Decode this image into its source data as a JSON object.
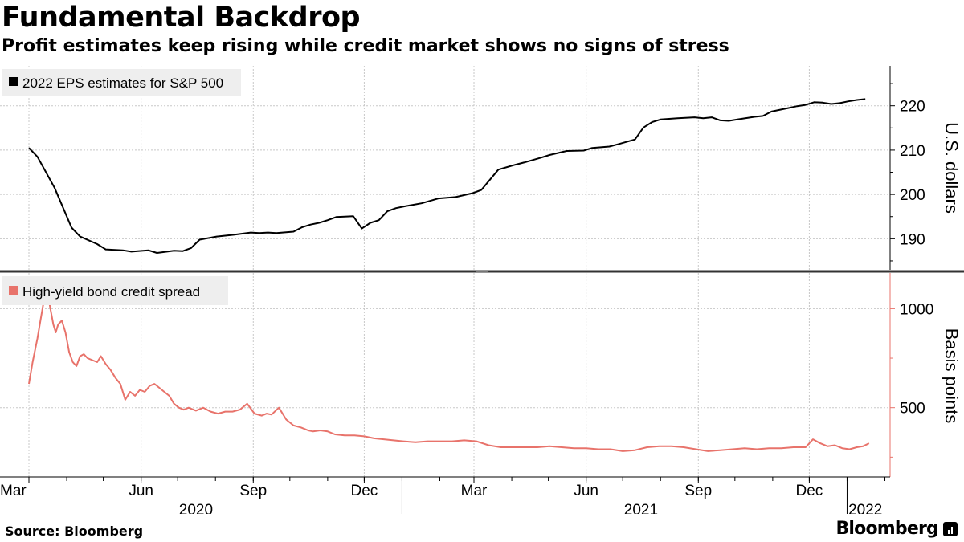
{
  "header": {
    "title": "Fundamental Backdrop",
    "subtitle": "Profit estimates keep rising while credit market shows no signs of stress"
  },
  "footer": {
    "source": "Source: Bloomberg",
    "brand": "Bloomberg"
  },
  "colors": {
    "eps_line": "#000000",
    "spread_line": "#e8736b",
    "grid": "#c8c8c8"
  },
  "chart_data": [
    {
      "type": "line",
      "panel": "top",
      "legend": "2022 EPS estimates for S&P 500",
      "legend_position": "top-left",
      "ylabel": "U.S. dollars",
      "y_ticks": [
        "190",
        "200",
        "210",
        "220"
      ],
      "ylim": [
        183,
        229
      ],
      "y_axis_side": "right",
      "grid": true,
      "series": [
        {
          "name": "2022 EPS estimates for S&P 500",
          "x": [
            "2020-03-01",
            "2020-03-08",
            "2020-03-22",
            "2020-04-05",
            "2020-04-12",
            "2020-04-26",
            "2020-05-03",
            "2020-05-17",
            "2020-05-24",
            "2020-06-07",
            "2020-06-14",
            "2020-06-28",
            "2020-07-05",
            "2020-07-12",
            "2020-07-19",
            "2020-08-02",
            "2020-08-16",
            "2020-08-30",
            "2020-09-06",
            "2020-09-13",
            "2020-09-20",
            "2020-10-04",
            "2020-10-11",
            "2020-10-18",
            "2020-10-25",
            "2020-11-01",
            "2020-11-08",
            "2020-11-22",
            "2020-11-29",
            "2020-12-06",
            "2020-12-13",
            "2020-12-20",
            "2020-12-27",
            "2021-01-03",
            "2021-01-17",
            "2021-01-31",
            "2021-02-14",
            "2021-02-28",
            "2021-03-07",
            "2021-03-21",
            "2021-04-04",
            "2021-04-11",
            "2021-04-25",
            "2021-05-02",
            "2021-05-16",
            "2021-05-30",
            "2021-06-06",
            "2021-06-20",
            "2021-06-27",
            "2021-07-11",
            "2021-07-18",
            "2021-07-25",
            "2021-08-01",
            "2021-08-15",
            "2021-08-29",
            "2021-09-05",
            "2021-09-12",
            "2021-09-19",
            "2021-09-26",
            "2021-10-03",
            "2021-10-17",
            "2021-10-24",
            "2021-10-31",
            "2021-11-14",
            "2021-11-21",
            "2021-11-28",
            "2021-12-05",
            "2021-12-12",
            "2021-12-19",
            "2021-12-26",
            "2022-01-02",
            "2022-01-09",
            "2022-01-16"
          ],
          "values": [
            210.5,
            208.5,
            201.5,
            192.5,
            190.5,
            188.8,
            187.6,
            187.4,
            187.1,
            187.4,
            186.8,
            187.3,
            187.2,
            187.9,
            189.8,
            190.5,
            190.9,
            191.4,
            191.3,
            191.4,
            191.3,
            191.6,
            192.6,
            193.2,
            193.6,
            194.2,
            194.9,
            195.1,
            192.3,
            193.6,
            194.2,
            196.2,
            196.9,
            197.3,
            198.0,
            199.1,
            199.4,
            200.3,
            201.0,
            205.6,
            206.7,
            207.2,
            208.3,
            208.9,
            209.8,
            209.9,
            210.5,
            210.8,
            211.3,
            212.4,
            215.1,
            216.3,
            216.9,
            217.2,
            217.4,
            217.2,
            217.4,
            216.7,
            216.6,
            216.9,
            217.5,
            217.7,
            218.7,
            219.5,
            219.9,
            220.2,
            220.8,
            220.7,
            220.4,
            220.6,
            221.0,
            221.3,
            221.5
          ]
        }
      ]
    },
    {
      "type": "line",
      "panel": "bottom",
      "legend": "High-yield bond credit spread",
      "legend_position": "top-left",
      "ylabel": "Basis points",
      "y_ticks": [
        "500",
        "1000"
      ],
      "ylim": [
        150,
        1180
      ],
      "y_axis_side": "right",
      "grid": true,
      "series": [
        {
          "name": "High-yield bond credit spread",
          "x": [
            "2020-03-01",
            "2020-03-04",
            "2020-03-08",
            "2020-03-11",
            "2020-03-15",
            "2020-03-18",
            "2020-03-21",
            "2020-03-23",
            "2020-03-25",
            "2020-03-28",
            "2020-03-31",
            "2020-04-03",
            "2020-04-06",
            "2020-04-09",
            "2020-04-12",
            "2020-04-15",
            "2020-04-18",
            "2020-04-22",
            "2020-04-26",
            "2020-04-29",
            "2020-05-03",
            "2020-05-07",
            "2020-05-11",
            "2020-05-15",
            "2020-05-19",
            "2020-05-23",
            "2020-05-27",
            "2020-05-31",
            "2020-06-04",
            "2020-06-08",
            "2020-06-12",
            "2020-06-16",
            "2020-06-20",
            "2020-06-24",
            "2020-06-28",
            "2020-07-02",
            "2020-07-06",
            "2020-07-10",
            "2020-07-16",
            "2020-07-22",
            "2020-07-28",
            "2020-08-03",
            "2020-08-09",
            "2020-08-15",
            "2020-08-21",
            "2020-08-27",
            "2020-09-02",
            "2020-09-08",
            "2020-09-12",
            "2020-09-16",
            "2020-09-22",
            "2020-09-28",
            "2020-10-04",
            "2020-10-10",
            "2020-10-16",
            "2020-10-20",
            "2020-10-26",
            "2020-11-01",
            "2020-11-07",
            "2020-11-15",
            "2020-11-23",
            "2020-12-01",
            "2020-12-09",
            "2020-12-17",
            "2020-12-25",
            "2021-01-02",
            "2021-01-12",
            "2021-01-22",
            "2021-02-01",
            "2021-02-11",
            "2021-02-21",
            "2021-03-03",
            "2021-03-13",
            "2021-03-23",
            "2021-04-02",
            "2021-04-12",
            "2021-04-22",
            "2021-05-02",
            "2021-05-12",
            "2021-05-22",
            "2021-06-01",
            "2021-06-11",
            "2021-06-21",
            "2021-07-01",
            "2021-07-11",
            "2021-07-21",
            "2021-07-31",
            "2021-08-10",
            "2021-08-20",
            "2021-08-30",
            "2021-09-09",
            "2021-09-19",
            "2021-09-29",
            "2021-10-09",
            "2021-10-19",
            "2021-10-29",
            "2021-11-08",
            "2021-11-18",
            "2021-11-28",
            "2021-12-04",
            "2021-12-10",
            "2021-12-16",
            "2021-12-22",
            "2021-12-28",
            "2022-01-03",
            "2022-01-09",
            "2022-01-14",
            "2022-01-19"
          ],
          "values": [
            620,
            730,
            850,
            960,
            1100,
            1020,
            920,
            880,
            920,
            940,
            880,
            780,
            730,
            710,
            760,
            770,
            750,
            740,
            730,
            760,
            720,
            690,
            650,
            620,
            540,
            580,
            560,
            590,
            580,
            610,
            620,
            600,
            580,
            560,
            520,
            500,
            490,
            500,
            485,
            500,
            480,
            470,
            480,
            480,
            490,
            520,
            470,
            460,
            470,
            465,
            500,
            440,
            410,
            400,
            385,
            380,
            385,
            380,
            365,
            360,
            360,
            355,
            345,
            340,
            335,
            330,
            325,
            330,
            330,
            330,
            335,
            330,
            310,
            300,
            300,
            300,
            300,
            305,
            300,
            295,
            295,
            290,
            290,
            280,
            285,
            300,
            305,
            305,
            300,
            290,
            280,
            285,
            290,
            295,
            290,
            295,
            295,
            300,
            300,
            340,
            320,
            305,
            310,
            295,
            290,
            300,
            305,
            320
          ]
        }
      ],
      "x_tick_labels": [
        "Mar",
        "Jun",
        "Sep",
        "Dec",
        "Mar",
        "Jun",
        "Sep",
        "Dec"
      ],
      "x_tick_dates": [
        "2020-03-01",
        "2020-06-01",
        "2020-09-01",
        "2020-12-01",
        "2021-03-01",
        "2021-06-01",
        "2021-09-01",
        "2021-12-01"
      ],
      "x_year_labels": [
        "2020",
        "2021",
        "2022"
      ],
      "x_year_dates": [
        "2020-07-16",
        "2021-07-16",
        "2022-01-16"
      ]
    }
  ]
}
